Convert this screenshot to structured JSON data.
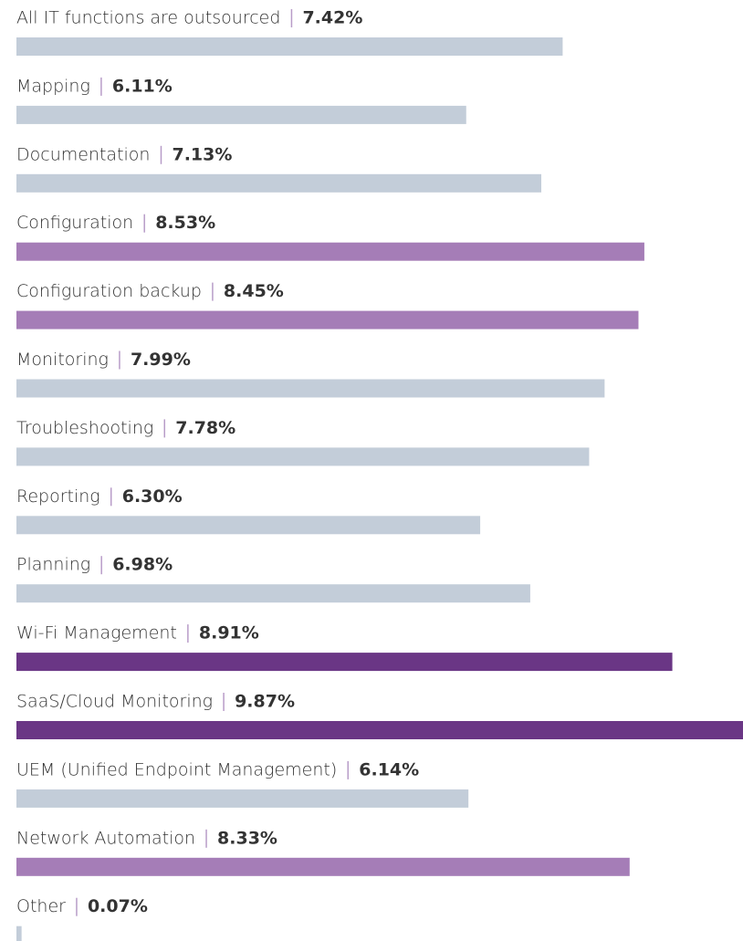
{
  "chart_data": {
    "type": "bar",
    "categories": [
      "All IT functions are outsourced",
      "Mapping",
      "Documentation",
      "Configuration",
      "Configuration backup",
      "Monitoring",
      "Troubleshooting",
      "Reporting",
      "Planning",
      "Wi-Fi Management",
      "SaaS/Cloud Monitoring",
      "UEM (Unified Endpoint Management)",
      "Network Automation",
      "Other"
    ],
    "values": [
      7.42,
      6.11,
      7.13,
      8.53,
      8.45,
      7.99,
      7.78,
      6.3,
      6.98,
      8.91,
      9.87,
      6.14,
      8.33,
      0.07
    ],
    "value_labels": [
      "7.42%",
      "6.11%",
      "7.13%",
      "8.53%",
      "8.45%",
      "7.99%",
      "7.78%",
      "6.30%",
      "6.98%",
      "8.91%",
      "9.87%",
      "6.14%",
      "8.33%",
      "0.07%"
    ],
    "colors": [
      "#c3cdd9",
      "#c3cdd9",
      "#c3cdd9",
      "#a57db7",
      "#a57db7",
      "#c3cdd9",
      "#c3cdd9",
      "#c3cdd9",
      "#c3cdd9",
      "#6a3685",
      "#6a3685",
      "#c3cdd9",
      "#a57db7",
      "#c3cdd9"
    ]
  }
}
